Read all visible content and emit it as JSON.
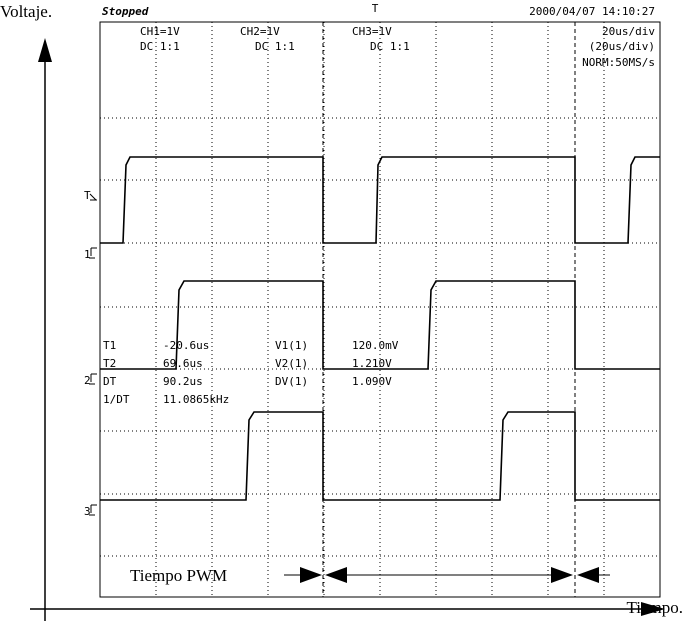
{
  "axis_labels": {
    "y": "Voltaje.",
    "x": "Tiempo."
  },
  "header": {
    "status": "Stopped",
    "datetime": "2000/04/07 14:10:27"
  },
  "channels": [
    {
      "scale": "CH1=1V",
      "coupling": "DC 1:1",
      "marker": "1"
    },
    {
      "scale": "CH2=1V",
      "coupling": "DC 1:1",
      "marker": "2"
    },
    {
      "scale": "CH3=1V",
      "coupling": "DC 1:1",
      "marker": "3"
    }
  ],
  "timebase": [
    "20us/div",
    "(20us/div)",
    "NORM:50MS/s"
  ],
  "trigger_marker": "T",
  "measurements": {
    "rows": [
      [
        "T1",
        "-20.6us",
        "V1(1)",
        "120.0mV"
      ],
      [
        "T2",
        "69.6us",
        "V2(1)",
        "1.210V"
      ],
      [
        "DT",
        "90.2us",
        "DV(1)",
        "1.090V"
      ],
      [
        "1/DT",
        "11.0865kHz"
      ]
    ]
  },
  "annotation": "Tiempo PWM"
}
